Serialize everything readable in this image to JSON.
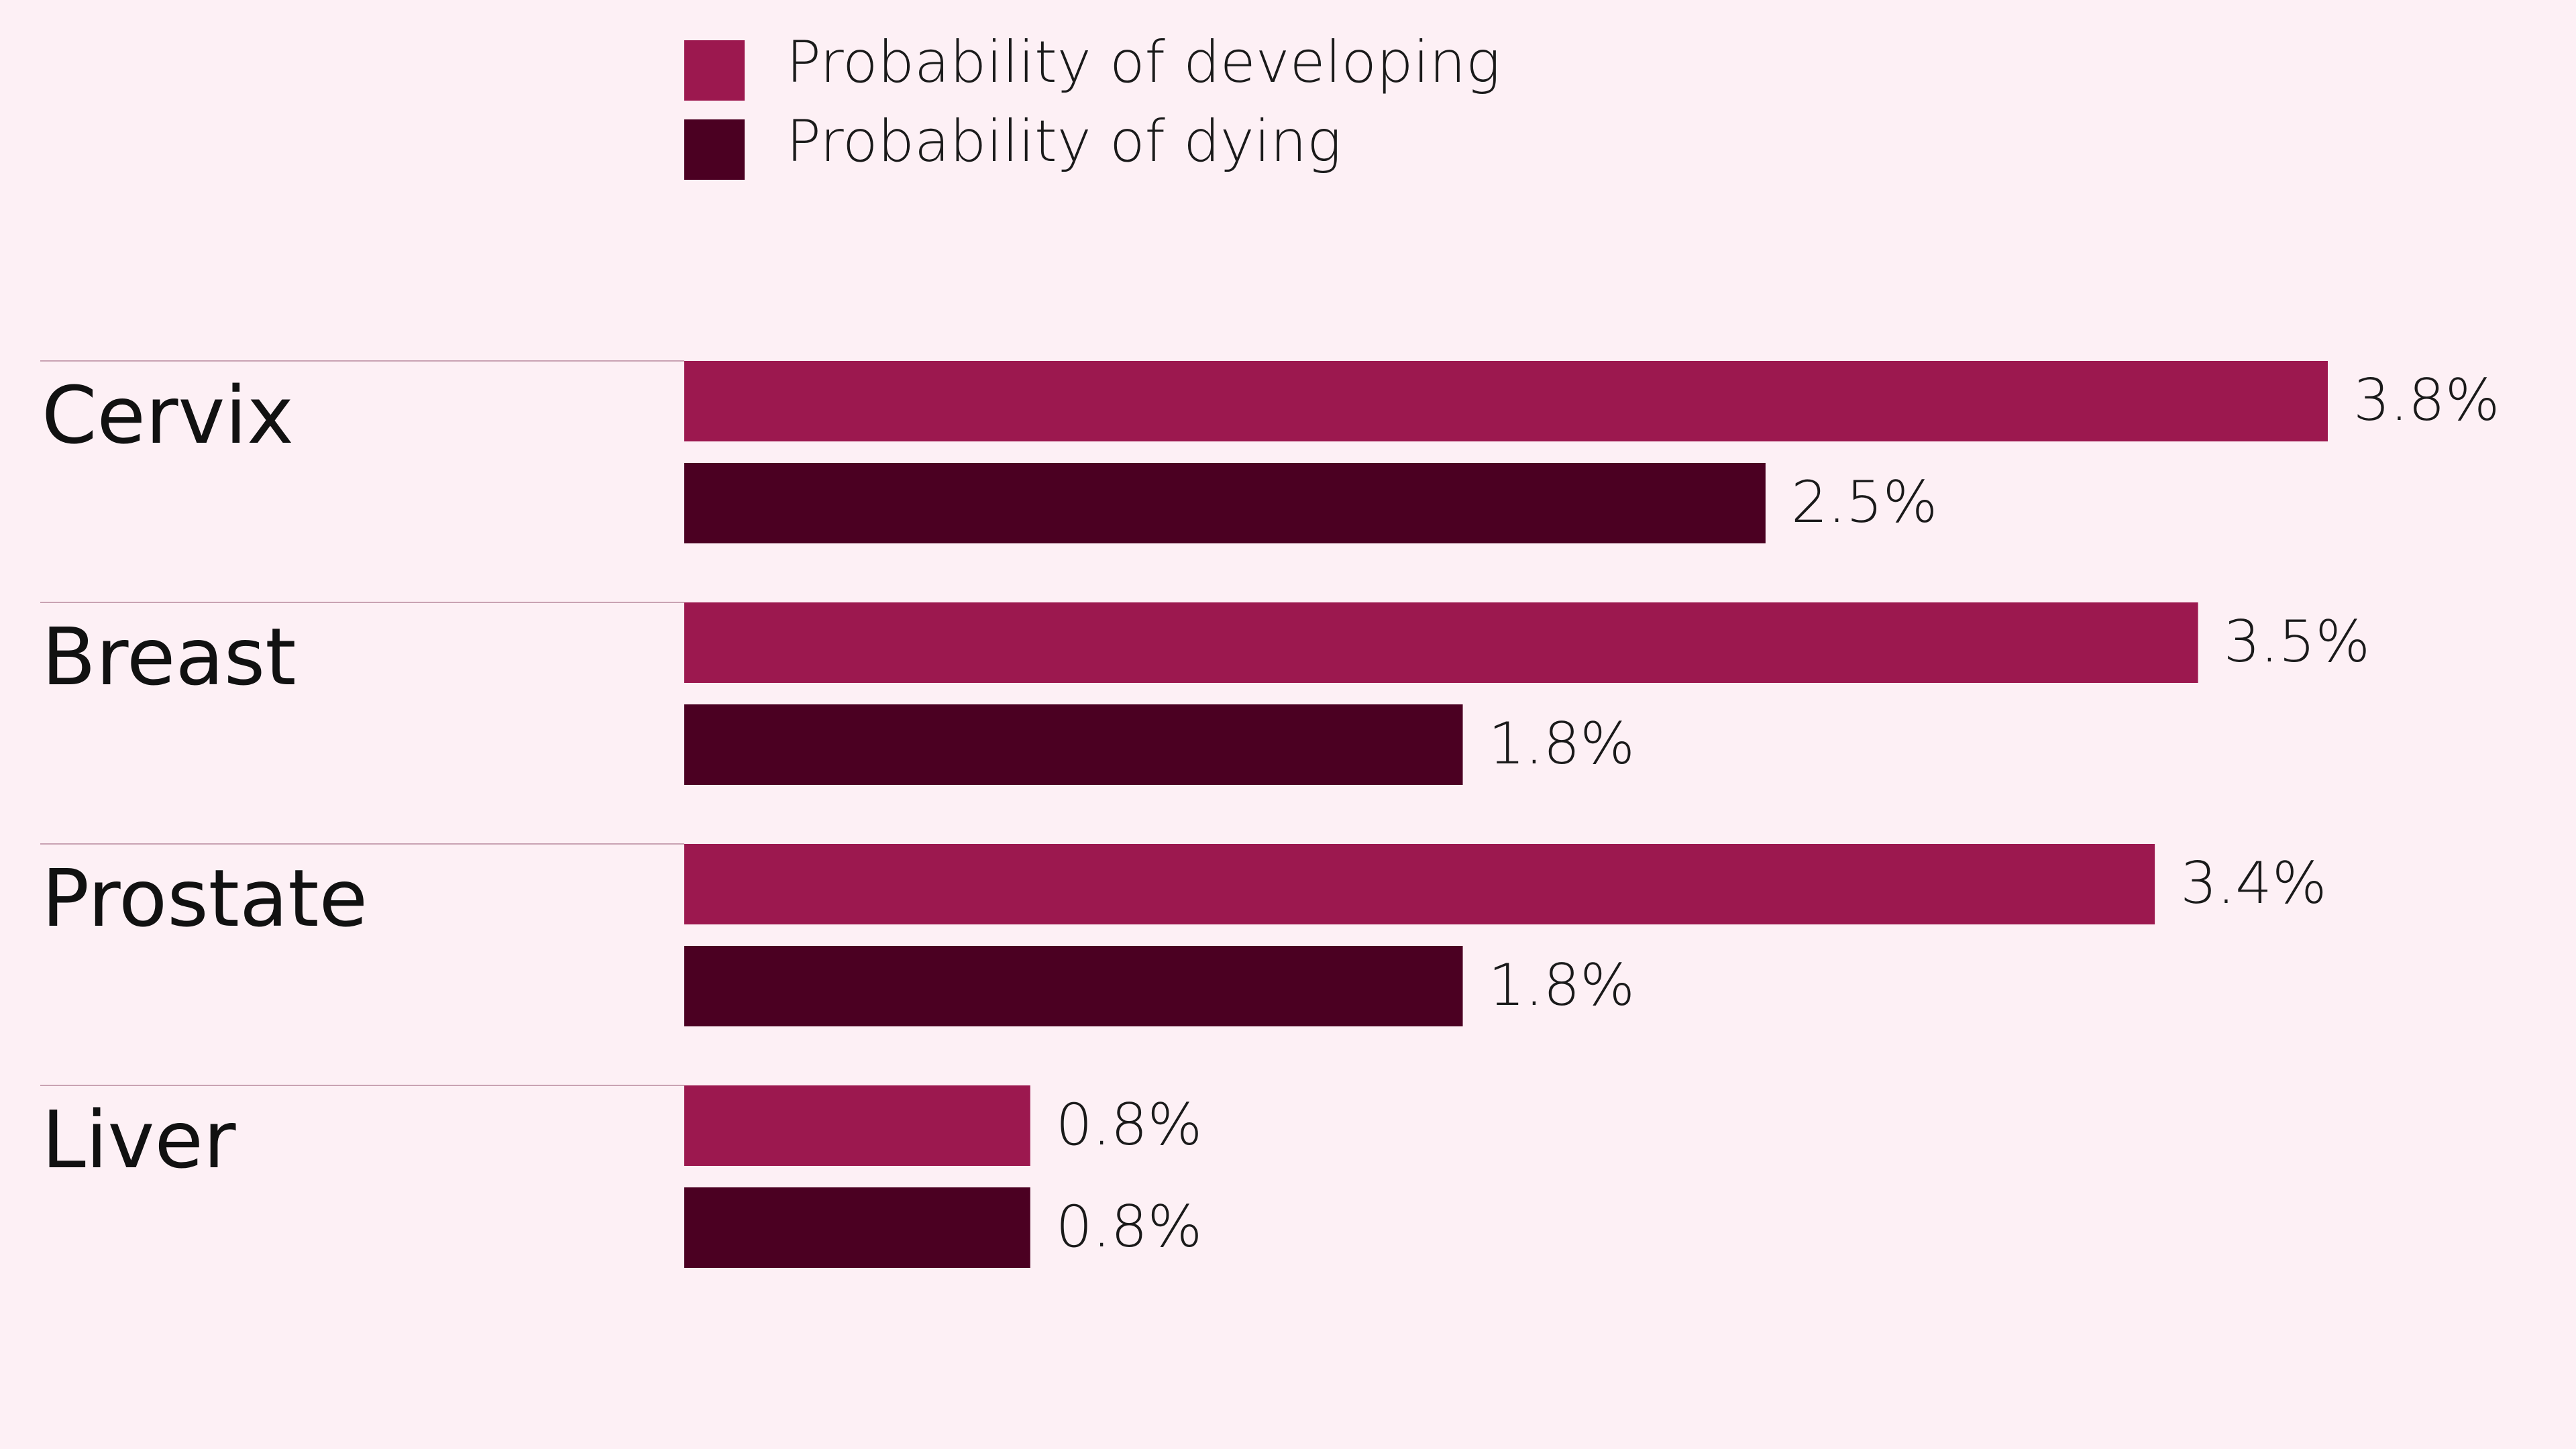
{
  "colors": {
    "background": "#fdf0f5",
    "developing": "#9c184f",
    "dying": "#4b0022",
    "separator": "#c9a3b3",
    "text": "#1a1a1a"
  },
  "chart_data": {
    "type": "bar",
    "orientation": "horizontal",
    "categories": [
      "Cervix",
      "Breast",
      "Prostate",
      "Liver"
    ],
    "series": [
      {
        "name": "Probability of developing",
        "values": [
          3.8,
          3.5,
          3.4,
          0.8
        ],
        "labels": [
          "3.8%",
          "3.5%",
          "3.4%",
          "0.8%"
        ]
      },
      {
        "name": "Probability of dying",
        "values": [
          2.5,
          1.8,
          1.8,
          0.8
        ],
        "labels": [
          "2.5%",
          "1.8%",
          "1.8%",
          "0.8%"
        ]
      }
    ],
    "value_unit": "%",
    "xlim": [
      0,
      3.8
    ],
    "grid": false,
    "legend_position": "top-left"
  }
}
